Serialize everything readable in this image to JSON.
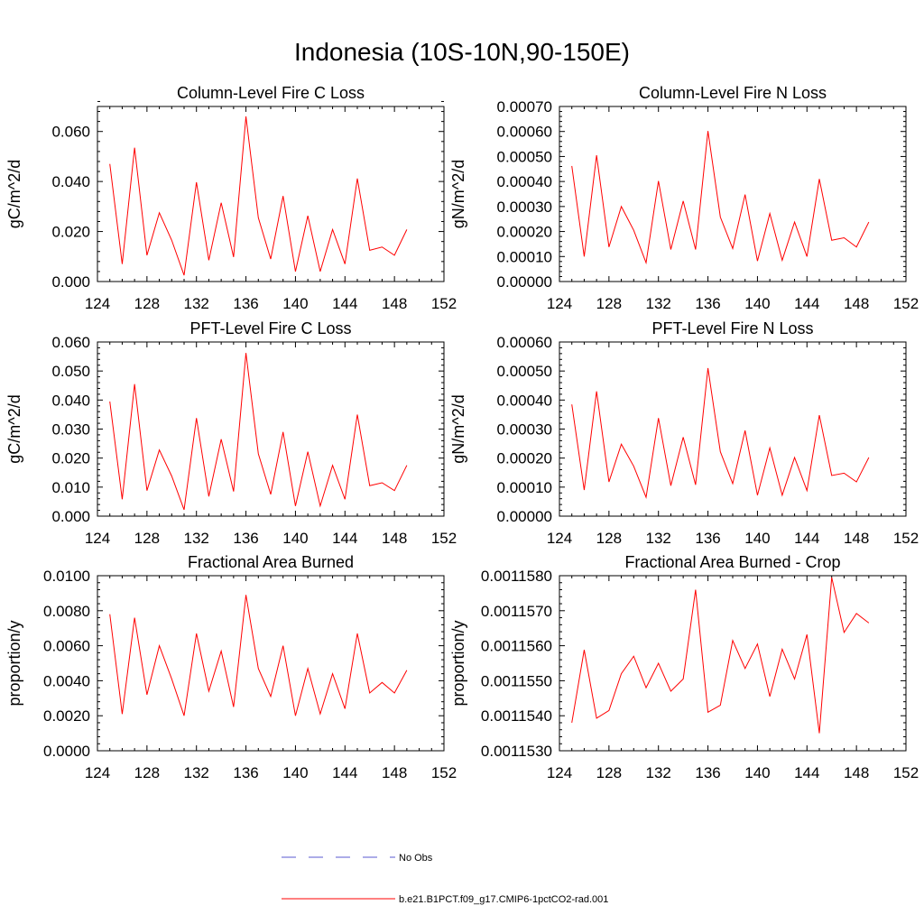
{
  "title": "Indonesia (10S-10N,90-150E)",
  "chart_data": [
    {
      "type": "line",
      "title": "Column-Level Fire C Loss",
      "ylabel": "gC/m^2/d",
      "xlim": [
        124,
        152
      ],
      "ylim": [
        0,
        0.07
      ],
      "x_ticks": [
        "124",
        "128",
        "132",
        "136",
        "140",
        "144",
        "148",
        "152"
      ],
      "y_ticks": [
        "0.000",
        "0.020",
        "0.040",
        "0.060"
      ],
      "y_tick_values": [
        0,
        0.02,
        0.04,
        0.06
      ],
      "x": [
        125,
        126,
        127,
        128,
        129,
        130,
        131,
        132,
        133,
        134,
        135,
        136,
        137,
        138,
        139,
        140,
        141,
        142,
        143,
        144,
        145,
        146,
        147,
        148,
        149
      ],
      "series": [
        {
          "name": "b.e21.B1PCT.f09_g17.CMIP6-1pctCO2-rad.001",
          "color": "#ff0000",
          "values": [
            0.047,
            0.007,
            0.0535,
            0.0105,
            0.0275,
            0.0165,
            0.0025,
            0.0397,
            0.0085,
            0.0315,
            0.0098,
            0.066,
            0.0255,
            0.009,
            0.0342,
            0.004,
            0.0263,
            0.004,
            0.0208,
            0.007,
            0.0412,
            0.0125,
            0.0138,
            0.0105,
            0.0208
          ]
        }
      ]
    },
    {
      "type": "line",
      "title": "Column-Level Fire N Loss",
      "ylabel": "gN/m^2/d",
      "xlim": [
        124,
        152
      ],
      "ylim": [
        0,
        0.0007
      ],
      "x_ticks": [
        "124",
        "128",
        "132",
        "136",
        "140",
        "144",
        "148",
        "152"
      ],
      "y_ticks": [
        "0.00000",
        "0.00010",
        "0.00020",
        "0.00030",
        "0.00040",
        "0.00050",
        "0.00060",
        "0.00070"
      ],
      "y_tick_values": [
        0,
        0.0001,
        0.0002,
        0.0003,
        0.0004,
        0.0005,
        0.0006,
        0.0007
      ],
      "x": [
        125,
        126,
        127,
        128,
        129,
        130,
        131,
        132,
        133,
        134,
        135,
        136,
        137,
        138,
        139,
        140,
        141,
        142,
        143,
        144,
        145,
        146,
        147,
        148,
        149
      ],
      "series": [
        {
          "name": "b.e21.B1PCT.f09_g17.CMIP6-1pctCO2-rad.001",
          "color": "#ff0000",
          "values": [
            0.000462,
            0.0001,
            0.000505,
            0.000138,
            0.0003,
            0.000205,
            7.5e-05,
            0.000402,
            0.000128,
            0.000322,
            0.000128,
            0.000602,
            0.000258,
            0.000132,
            0.000348,
            8.2e-05,
            0.000272,
            8.5e-05,
            0.000238,
            0.0001,
            0.00041,
            0.000165,
            0.000175,
            0.000138,
            0.000238
          ]
        }
      ]
    },
    {
      "type": "line",
      "title": "PFT-Level Fire C Loss",
      "ylabel": "gC/m^2/d",
      "xlim": [
        124,
        152
      ],
      "ylim": [
        0,
        0.06
      ],
      "x_ticks": [
        "124",
        "128",
        "132",
        "136",
        "140",
        "144",
        "148",
        "152"
      ],
      "y_ticks": [
        "0.000",
        "0.010",
        "0.020",
        "0.030",
        "0.040",
        "0.050",
        "0.060"
      ],
      "y_tick_values": [
        0,
        0.01,
        0.02,
        0.03,
        0.04,
        0.05,
        0.06
      ],
      "x": [
        125,
        126,
        127,
        128,
        129,
        130,
        131,
        132,
        133,
        134,
        135,
        136,
        137,
        138,
        139,
        140,
        141,
        142,
        143,
        144,
        145,
        146,
        147,
        148,
        149
      ],
      "series": [
        {
          "name": "b.e21.B1PCT.f09_g17.CMIP6-1pctCO2-rad.001",
          "color": "#ff0000",
          "values": [
            0.0395,
            0.0058,
            0.0455,
            0.0088,
            0.0228,
            0.0138,
            0.0022,
            0.0338,
            0.0068,
            0.0265,
            0.0085,
            0.0562,
            0.0215,
            0.0075,
            0.029,
            0.0035,
            0.0222,
            0.0035,
            0.0175,
            0.0058,
            0.035,
            0.0105,
            0.0115,
            0.0088,
            0.0175
          ]
        }
      ]
    },
    {
      "type": "line",
      "title": "PFT-Level Fire N Loss",
      "ylabel": "gN/m^2/d",
      "xlim": [
        124,
        152
      ],
      "ylim": [
        0,
        0.0006
      ],
      "x_ticks": [
        "124",
        "128",
        "132",
        "136",
        "140",
        "144",
        "148",
        "152"
      ],
      "y_ticks": [
        "0.00000",
        "0.00010",
        "0.00020",
        "0.00030",
        "0.00040",
        "0.00050",
        "0.00060"
      ],
      "y_tick_values": [
        0,
        0.0001,
        0.0002,
        0.0003,
        0.0004,
        0.0005,
        0.0006
      ],
      "x": [
        125,
        126,
        127,
        128,
        129,
        130,
        131,
        132,
        133,
        134,
        135,
        136,
        137,
        138,
        139,
        140,
        141,
        142,
        143,
        144,
        145,
        146,
        147,
        148,
        149
      ],
      "series": [
        {
          "name": "b.e21.B1PCT.f09_g17.CMIP6-1pctCO2-rad.001",
          "color": "#ff0000",
          "values": [
            0.000385,
            9e-05,
            0.00043,
            0.000118,
            0.000248,
            0.000172,
            6.5e-05,
            0.000338,
            0.000105,
            0.000272,
            0.000108,
            0.00051,
            0.000222,
            0.000112,
            0.000295,
            7.2e-05,
            0.000235,
            7.2e-05,
            0.000202,
            8.8e-05,
            0.000348,
            0.00014,
            0.000148,
            0.000118,
            0.000202
          ]
        }
      ]
    },
    {
      "type": "line",
      "title": "Fractional Area Burned",
      "ylabel": "proportion/y",
      "xlim": [
        124,
        152
      ],
      "ylim": [
        0,
        0.01
      ],
      "x_ticks": [
        "124",
        "128",
        "132",
        "136",
        "140",
        "144",
        "148",
        "152"
      ],
      "y_ticks": [
        "0.0000",
        "0.0020",
        "0.0040",
        "0.0060",
        "0.0080",
        "0.0100"
      ],
      "y_tick_values": [
        0,
        0.002,
        0.004,
        0.006,
        0.008,
        0.01
      ],
      "x": [
        125,
        126,
        127,
        128,
        129,
        130,
        131,
        132,
        133,
        134,
        135,
        136,
        137,
        138,
        139,
        140,
        141,
        142,
        143,
        144,
        145,
        146,
        147,
        148,
        149
      ],
      "series": [
        {
          "name": "b.e21.B1PCT.f09_g17.CMIP6-1pctCO2-rad.001",
          "color": "#ff0000",
          "values": [
            0.0078,
            0.0021,
            0.0076,
            0.0032,
            0.006,
            0.0041,
            0.002,
            0.0067,
            0.0034,
            0.0057,
            0.0025,
            0.0089,
            0.0047,
            0.0031,
            0.006,
            0.002,
            0.0047,
            0.0021,
            0.0044,
            0.0024,
            0.0067,
            0.0033,
            0.0039,
            0.0033,
            0.0046
          ]
        }
      ]
    },
    {
      "type": "line",
      "title": "Fractional Area Burned - Crop",
      "ylabel": "proportion/y",
      "xlim": [
        124,
        152
      ],
      "ylim": [
        0.001153,
        0.001158
      ],
      "x_ticks": [
        "124",
        "128",
        "132",
        "136",
        "140",
        "144",
        "148",
        "152"
      ],
      "y_ticks": [
        "0.0011530",
        "0.0011540",
        "0.0011550",
        "0.0011560",
        "0.0011570",
        "0.0011580"
      ],
      "y_tick_values": [
        0.001153,
        0.001154,
        0.001155,
        0.001156,
        0.001157,
        0.001158
      ],
      "x": [
        125,
        126,
        127,
        128,
        129,
        130,
        131,
        132,
        133,
        134,
        135,
        136,
        137,
        138,
        139,
        140,
        141,
        142,
        143,
        144,
        145,
        146,
        147,
        148,
        149
      ],
      "series": [
        {
          "name": "b.e21.B1PCT.f09_g17.CMIP6-1pctCO2-rad.001",
          "color": "#ff0000",
          "values": [
            0.0011538,
            0.00115588,
            0.00115393,
            0.00115415,
            0.0011552,
            0.0011557,
            0.0011548,
            0.0011555,
            0.0011547,
            0.00115505,
            0.0011576,
            0.0011541,
            0.0011543,
            0.00115615,
            0.00115535,
            0.00115605,
            0.00115455,
            0.0011559,
            0.00115505,
            0.00115632,
            0.0011535,
            0.00115795,
            0.00115638,
            0.00115692,
            0.00115665
          ]
        }
      ]
    }
  ],
  "legend": {
    "items": [
      {
        "label": "No Obs",
        "color": "#5a5ad2",
        "style": "dashed"
      },
      {
        "label": "b.e21.B1PCT.f09_g17.CMIP6-1pctCO2-rad.001",
        "color": "#ff0000",
        "style": "solid"
      }
    ]
  }
}
